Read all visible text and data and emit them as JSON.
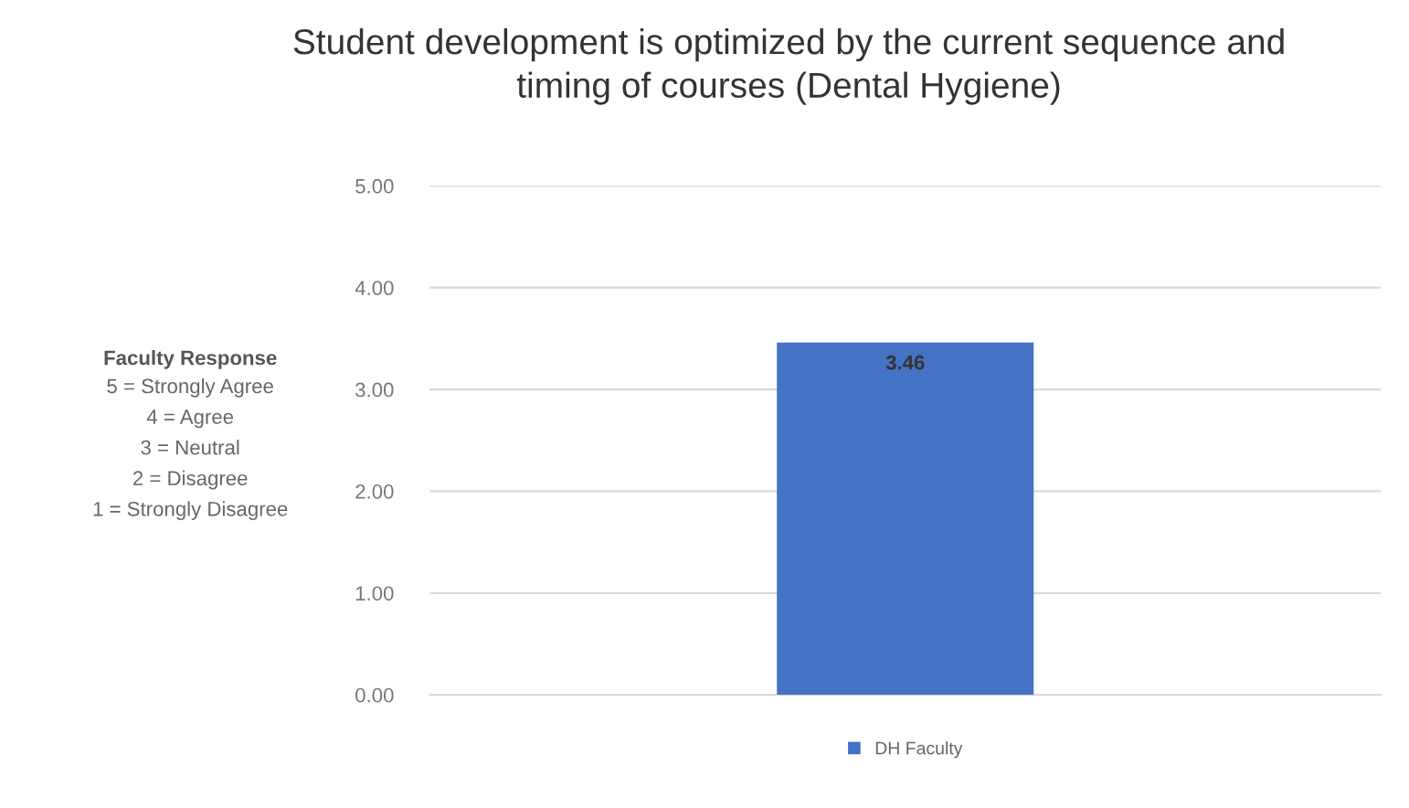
{
  "chart_data": {
    "type": "bar",
    "title": "Student development is optimized by the current sequence and\ntiming of courses (Dental Hygiene)",
    "ylabel": "Faculty Response",
    "annotations": [
      "5 = Strongly Agree",
      "4 = Agree",
      "3 = Neutral",
      "2 = Disagree",
      "1 = Strongly Disagree"
    ],
    "categories": [
      null
    ],
    "series": [
      {
        "name": "DH Faculty",
        "color": "#4472c4",
        "values": [
          3.46
        ]
      }
    ],
    "ylim": [
      0,
      5
    ],
    "yticks": [
      {
        "value": 0,
        "label": "0.00"
      },
      {
        "value": 1,
        "label": "1.00"
      },
      {
        "value": 2,
        "label": "2.00"
      },
      {
        "value": 3,
        "label": "3.00"
      },
      {
        "value": 4,
        "label": "4.00"
      },
      {
        "value": 5,
        "label": "5.00"
      }
    ],
    "grid": "y",
    "legend": "bottom",
    "data_labels": true
  }
}
